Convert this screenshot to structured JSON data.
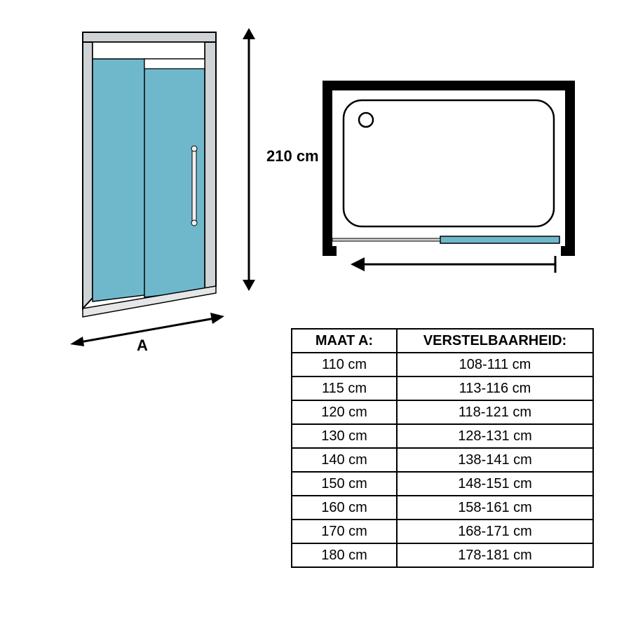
{
  "door": {
    "glass_color": "#6fb8cc",
    "frame_color": "#cfd3d6",
    "outline_color": "#000000",
    "handle_color": "#e8e8e8"
  },
  "height": {
    "label": "210 cm",
    "arrow_color": "#000000"
  },
  "width": {
    "label": "A",
    "arrow_color": "#000000"
  },
  "topview": {
    "border_color": "#000000",
    "border_width": 14,
    "tray_stroke": "#000000",
    "drain_stroke": "#000000",
    "track_color": "#6fb8cc",
    "arrow_color": "#000000",
    "bg": "#ffffff"
  },
  "table": {
    "headers": [
      "MAAT A:",
      "VERSTELBAARHEID:"
    ],
    "rows": [
      [
        "110 cm",
        "108-111  cm"
      ],
      [
        "115 cm",
        "113-116  cm"
      ],
      [
        "120 cm",
        "118-121  cm"
      ],
      [
        "130 cm",
        "128-131  cm"
      ],
      [
        "140 cm",
        "138-141  cm"
      ],
      [
        "150 cm",
        "148-151  cm"
      ],
      [
        "160 cm",
        "158-161  cm"
      ],
      [
        "170 cm",
        "168-171  cm"
      ],
      [
        "180 cm",
        "178-181  cm"
      ]
    ],
    "border_color": "#000000",
    "font_size": 20
  }
}
